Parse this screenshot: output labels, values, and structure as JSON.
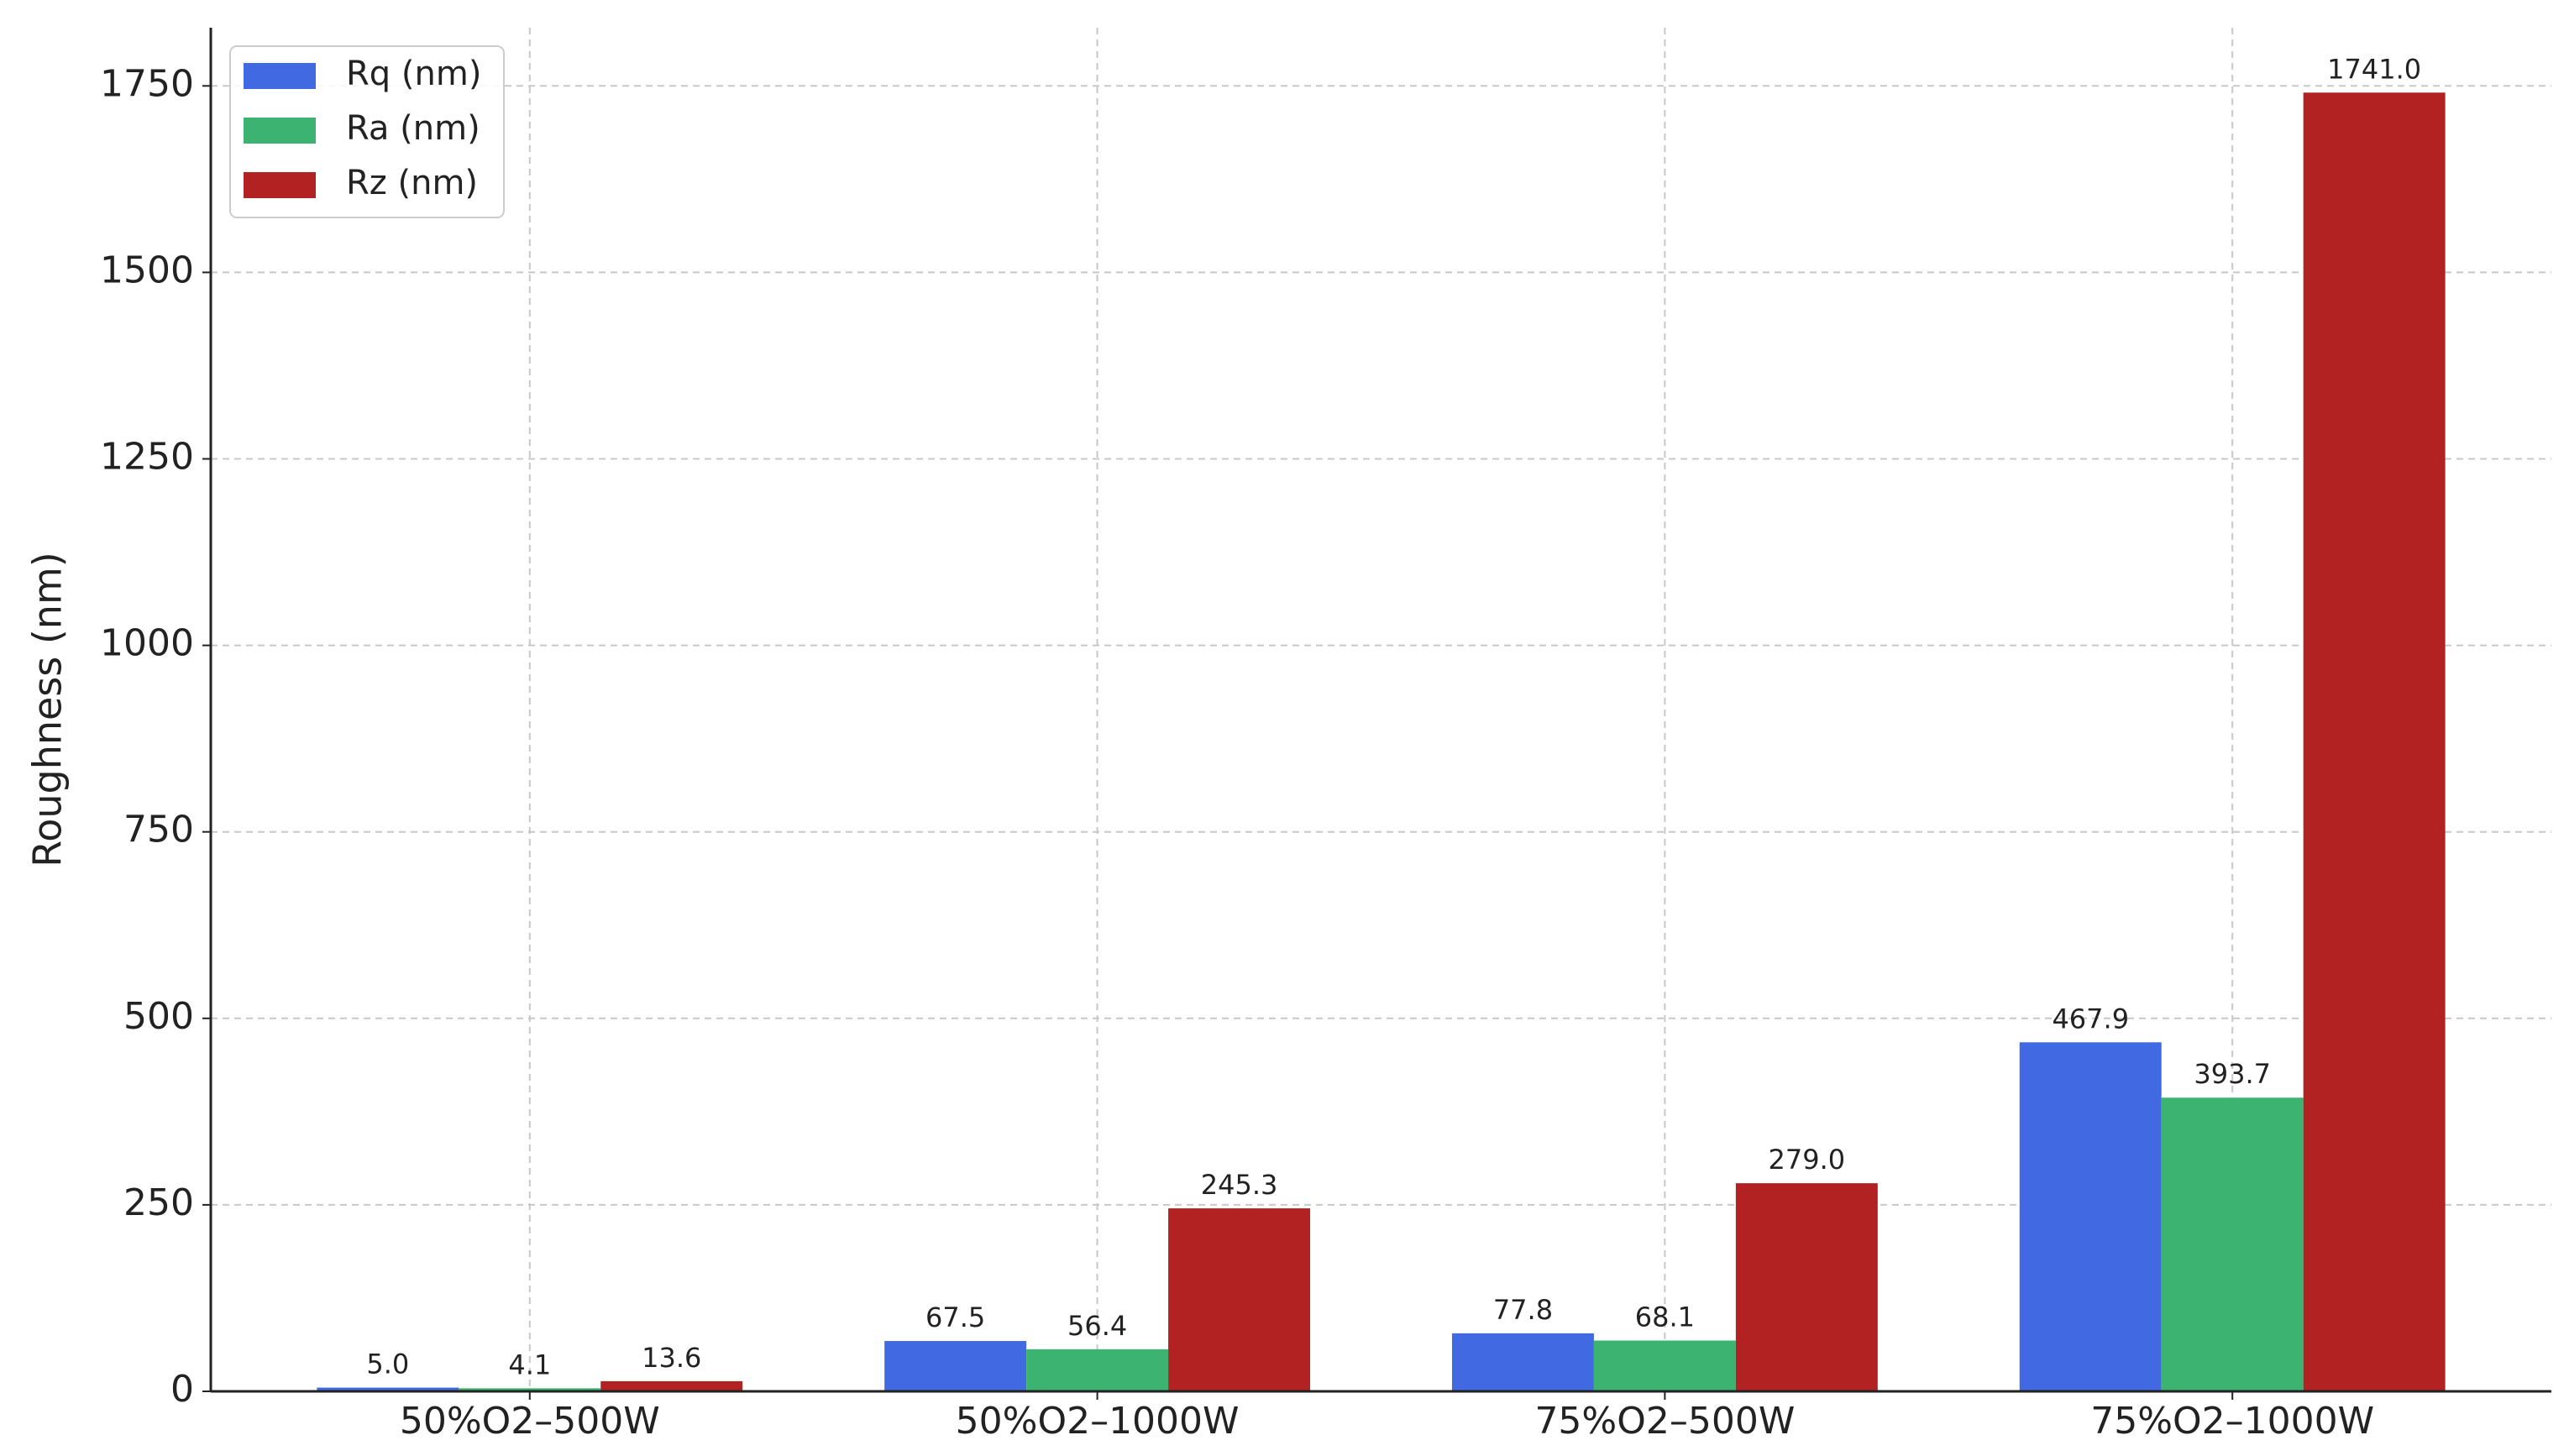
{
  "chart_data": {
    "type": "bar",
    "y_label": "Roughness (nm)",
    "categories": [
      "50%O2–500W",
      "50%O2–1000W",
      "75%O2–500W",
      "75%O2–1000W"
    ],
    "series": [
      {
        "name": "Rq (nm)",
        "color": "#4169e1",
        "values": [
          5.0,
          67.5,
          77.8,
          467.9
        ],
        "value_labels": [
          "5.0",
          "67.5",
          "77.8",
          "467.9"
        ]
      },
      {
        "name": "Ra (nm)",
        "color": "#3cb371",
        "values": [
          4.1,
          56.4,
          68.1,
          393.7
        ],
        "value_labels": [
          "4.1",
          "56.4",
          "68.1",
          "393.7"
        ]
      },
      {
        "name": "Rz (nm)",
        "color": "#b22222",
        "values": [
          13.6,
          245.3,
          279.0,
          1741.0
        ],
        "value_labels": [
          "13.6",
          "245.3",
          "279.0",
          "1741.0"
        ]
      }
    ],
    "ylim": [
      0,
      1828
    ],
    "yticks": [
      0,
      250,
      500,
      750,
      1000,
      1250,
      1500,
      1750
    ],
    "grid": true,
    "legend": "upper left"
  }
}
